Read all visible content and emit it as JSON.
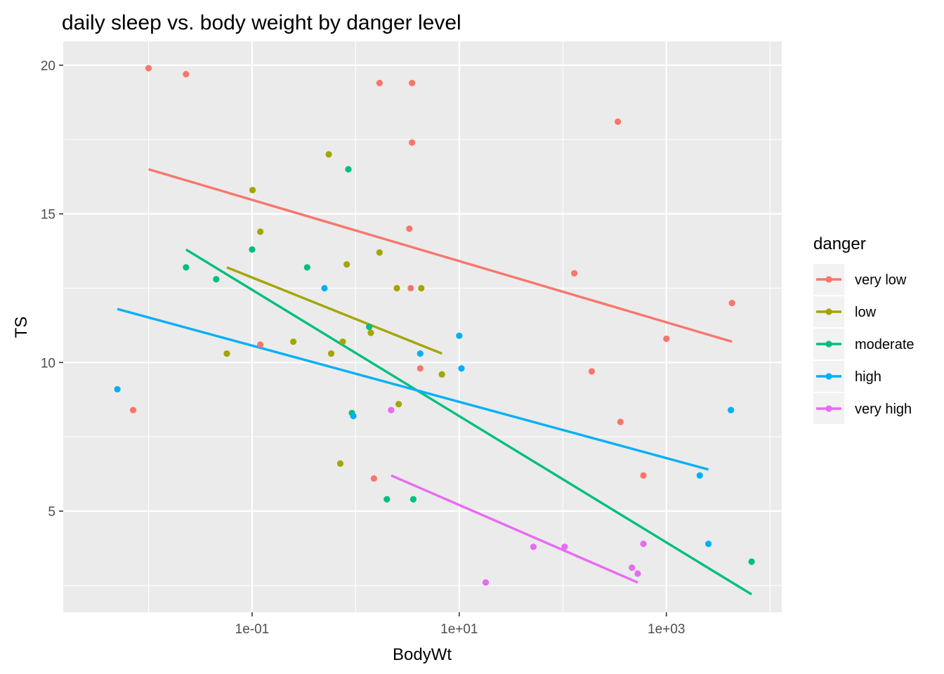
{
  "chart_data": {
    "type": "scatter",
    "title": "daily sleep vs. body weight by danger level",
    "xlabel": "BodyWt",
    "ylabel": "TS",
    "x_scale": "log10",
    "xlim": [
      0.0015,
      13000
    ],
    "ylim": [
      1.6,
      20.8
    ],
    "x_ticks": [
      0.1,
      10,
      1000
    ],
    "x_tick_labels": [
      "1e-01",
      "1e+01",
      "1e+03"
    ],
    "y_ticks": [
      5,
      10,
      15,
      20
    ],
    "y_tick_labels": [
      "5",
      "10",
      "15",
      "20"
    ],
    "grid": true,
    "legend_position": "right",
    "legend_title": "danger",
    "series": [
      {
        "name": "very low",
        "color": "#F8766D",
        "points": [
          [
            0.01,
            19.9
          ],
          [
            0.023,
            19.7
          ],
          [
            0.0071,
            8.4
          ],
          [
            0.12,
            10.6
          ],
          [
            1.7,
            19.4
          ],
          [
            3.5,
            19.4
          ],
          [
            3.5,
            17.4
          ],
          [
            3.3,
            14.5
          ],
          [
            3.4,
            12.5
          ],
          [
            4.2,
            9.8
          ],
          [
            1.5,
            6.1
          ],
          [
            129,
            13.0
          ],
          [
            340,
            18.1
          ],
          [
            190,
            9.7
          ],
          [
            360,
            8.0
          ],
          [
            600,
            6.2
          ],
          [
            1000,
            10.8
          ],
          [
            4300,
            12.0
          ]
        ],
        "trend": [
          [
            0.01,
            16.5
          ],
          [
            4300,
            10.7
          ]
        ]
      },
      {
        "name": "low",
        "color": "#A3A500",
        "points": [
          [
            0.101,
            15.8
          ],
          [
            0.12,
            14.4
          ],
          [
            0.057,
            10.3
          ],
          [
            0.25,
            10.7
          ],
          [
            0.55,
            17.0
          ],
          [
            1.7,
            13.7
          ],
          [
            0.82,
            13.3
          ],
          [
            0.75,
            10.7
          ],
          [
            0.58,
            10.3
          ],
          [
            1.4,
            11.0
          ],
          [
            0.71,
            6.6
          ],
          [
            2.5,
            12.5
          ],
          [
            2.6,
            8.6
          ],
          [
            4.3,
            12.5
          ],
          [
            6.8,
            9.6
          ]
        ],
        "trend": [
          [
            0.057,
            13.2
          ],
          [
            6.8,
            10.3
          ]
        ]
      },
      {
        "name": "moderate",
        "color": "#00BF7D",
        "points": [
          [
            0.023,
            13.2
          ],
          [
            0.045,
            12.8
          ],
          [
            0.1,
            13.8
          ],
          [
            0.34,
            13.2
          ],
          [
            0.85,
            16.5
          ],
          [
            1.35,
            11.2
          ],
          [
            0.92,
            8.3
          ],
          [
            2.0,
            5.4
          ],
          [
            3.6,
            5.4
          ],
          [
            6654,
            3.3
          ]
        ],
        "trend": [
          [
            0.023,
            13.8
          ],
          [
            6654,
            2.2
          ]
        ]
      },
      {
        "name": "high",
        "color": "#00B0F6",
        "points": [
          [
            0.005,
            9.1
          ],
          [
            0.5,
            12.5
          ],
          [
            0.95,
            8.2
          ],
          [
            4.2,
            10.3
          ],
          [
            10,
            10.9
          ],
          [
            10.5,
            9.8
          ],
          [
            2547,
            3.9
          ],
          [
            2100,
            6.2
          ],
          [
            4200,
            8.4
          ]
        ],
        "trend": [
          [
            0.005,
            11.8
          ],
          [
            2547,
            6.4
          ]
        ]
      },
      {
        "name": "very high",
        "color": "#E76BF3",
        "points": [
          [
            2.2,
            8.4
          ],
          [
            18,
            2.6
          ],
          [
            52,
            3.8
          ],
          [
            104,
            3.8
          ],
          [
            465,
            3.1
          ],
          [
            600,
            3.9
          ],
          [
            529,
            2.9
          ]
        ],
        "trend": [
          [
            2.2,
            6.2
          ],
          [
            529,
            2.6
          ]
        ]
      }
    ]
  }
}
